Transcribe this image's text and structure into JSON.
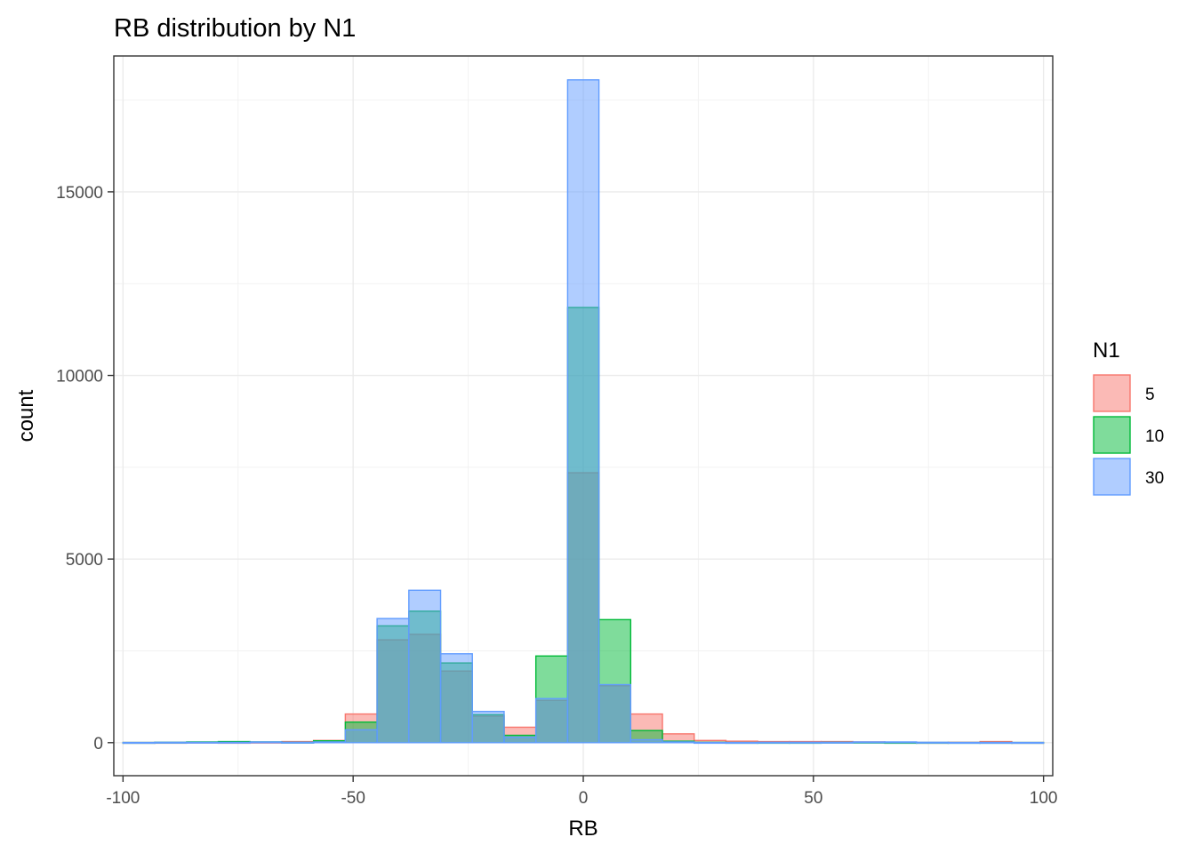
{
  "chart_data": {
    "type": "bar",
    "subtype": "overlapping histogram",
    "title": "RB distribution by N1",
    "xlabel": "RB",
    "ylabel": "count",
    "xlim": [
      -102,
      102
    ],
    "ylim": [
      -900,
      18700
    ],
    "x_ticks": [
      -100,
      -50,
      0,
      50,
      100
    ],
    "x_tick_labels": [
      "-100",
      "-50",
      "0",
      "50",
      "100"
    ],
    "y_ticks": [
      0,
      5000,
      10000,
      15000
    ],
    "y_tick_labels": [
      "0",
      "5000",
      "10000",
      "15000"
    ],
    "grid": true,
    "legend": {
      "title": "N1",
      "position": "right"
    },
    "bin_edges": [
      -100,
      -93.1,
      -86.2,
      -79.3,
      -72.4,
      -65.5,
      -58.6,
      -51.7,
      -44.8,
      -37.9,
      -31.0,
      -24.1,
      -17.2,
      -10.3,
      -3.4,
      3.4,
      10.3,
      17.2,
      24.1,
      31.0,
      37.9,
      44.8,
      51.7,
      58.6,
      65.5,
      72.4,
      79.3,
      86.2,
      93.1,
      100
    ],
    "series": [
      {
        "name": "5",
        "stroke": "#F8766D",
        "fill": "#F8766D",
        "values": [
          5,
          5,
          10,
          5,
          10,
          30,
          60,
          780,
          2800,
          2950,
          1950,
          720,
          420,
          1150,
          7350,
          1550,
          780,
          240,
          60,
          40,
          30,
          30,
          30,
          20,
          10,
          5,
          10,
          30,
          5
        ]
      },
      {
        "name": "10",
        "stroke": "#00BA38",
        "fill": "#00BA38",
        "values": [
          5,
          10,
          20,
          30,
          20,
          10,
          50,
          560,
          3180,
          3580,
          2170,
          760,
          200,
          2360,
          11850,
          3350,
          330,
          40,
          10,
          5,
          5,
          5,
          10,
          10,
          5,
          5,
          5,
          5,
          5
        ]
      },
      {
        "name": "30",
        "stroke": "#619CFF",
        "fill": "#619CFF",
        "values": [
          5,
          10,
          10,
          10,
          20,
          10,
          20,
          350,
          3380,
          4150,
          2420,
          850,
          150,
          1200,
          18050,
          1580,
          80,
          20,
          5,
          5,
          10,
          10,
          10,
          20,
          20,
          10,
          5,
          5,
          5
        ]
      }
    ]
  }
}
